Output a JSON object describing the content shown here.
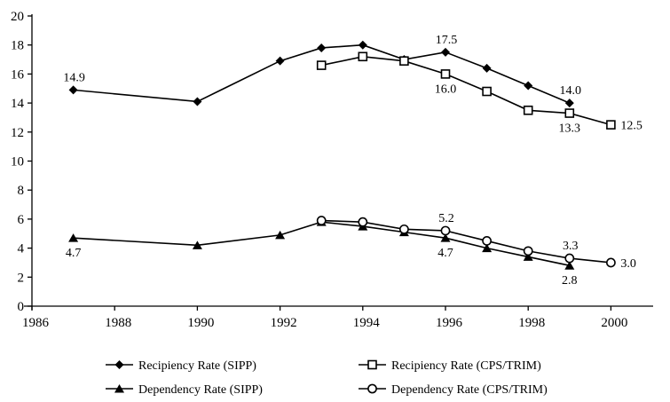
{
  "chart_data": {
    "type": "line",
    "title": "",
    "xlabel": "",
    "ylabel": "",
    "xlim": [
      1986,
      2001
    ],
    "ylim": [
      0,
      20
    ],
    "x_tick_values": [
      1986,
      1988,
      1990,
      1992,
      1994,
      1996,
      1998,
      2000
    ],
    "x_tick_labels": [
      "1986",
      "1988",
      "1990",
      "1992",
      "1994",
      "1996",
      "1998",
      "2000"
    ],
    "y_tick_values": [
      0,
      2,
      4,
      6,
      8,
      10,
      12,
      14,
      16,
      18,
      20
    ],
    "y_tick_labels": [
      "0",
      "2",
      "4",
      "6",
      "8",
      "10",
      "12",
      "14",
      "16",
      "18",
      "20"
    ],
    "grid": false,
    "legend_position": "bottom",
    "line_color": "#000000",
    "background_color": "#ffffff",
    "series": [
      {
        "name": "Recipiency Rate (SIPP)",
        "marker": "diamond-filled",
        "x": [
          1987,
          1990,
          1992,
          1993,
          1994,
          1995,
          1996,
          1997,
          1998,
          1999
        ],
        "y": [
          14.9,
          14.1,
          16.9,
          17.8,
          18.0,
          17.0,
          17.5,
          16.4,
          15.2,
          14.0
        ],
        "annotations": [
          {
            "index": 0,
            "text": "14.9",
            "pos": "above"
          },
          {
            "index": 6,
            "text": "17.5",
            "pos": "above"
          },
          {
            "index": 9,
            "text": "14.0",
            "pos": "above"
          }
        ]
      },
      {
        "name": "Recipiency Rate (CPS/TRIM)",
        "marker": "square-open",
        "x": [
          1993,
          1994,
          1995,
          1996,
          1997,
          1998,
          1999,
          2000
        ],
        "y": [
          16.6,
          17.2,
          16.9,
          16.0,
          14.8,
          13.5,
          13.3,
          12.5
        ],
        "annotations": [
          {
            "index": 3,
            "text": "16.0",
            "pos": "below"
          },
          {
            "index": 6,
            "text": "13.3",
            "pos": "below"
          },
          {
            "index": 7,
            "text": "12.5",
            "pos": "right"
          }
        ]
      },
      {
        "name": "Dependency Rate (SIPP)",
        "marker": "triangle-filled",
        "x": [
          1987,
          1990,
          1992,
          1993,
          1994,
          1995,
          1996,
          1997,
          1998,
          1999
        ],
        "y": [
          4.7,
          4.2,
          4.9,
          5.8,
          5.5,
          5.1,
          4.7,
          4.0,
          3.4,
          2.8
        ],
        "annotations": [
          {
            "index": 0,
            "text": "4.7",
            "pos": "below"
          },
          {
            "index": 6,
            "text": "4.7",
            "pos": "below"
          },
          {
            "index": 9,
            "text": "2.8",
            "pos": "below"
          }
        ]
      },
      {
        "name": "Dependency Rate (CPS/TRIM)",
        "marker": "circle-open",
        "x": [
          1993,
          1994,
          1995,
          1996,
          1997,
          1998,
          1999,
          2000
        ],
        "y": [
          5.9,
          5.8,
          5.3,
          5.2,
          4.5,
          3.8,
          3.3,
          3.0
        ],
        "annotations": [
          {
            "index": 3,
            "text": "5.2",
            "pos": "above"
          },
          {
            "index": 6,
            "text": "3.3",
            "pos": "above"
          },
          {
            "index": 7,
            "text": "3.0",
            "pos": "right"
          }
        ]
      }
    ],
    "legend": [
      {
        "series": 0,
        "row": 0,
        "col": 0
      },
      {
        "series": 1,
        "row": 0,
        "col": 1
      },
      {
        "series": 2,
        "row": 1,
        "col": 0
      },
      {
        "series": 3,
        "row": 1,
        "col": 1
      }
    ]
  }
}
